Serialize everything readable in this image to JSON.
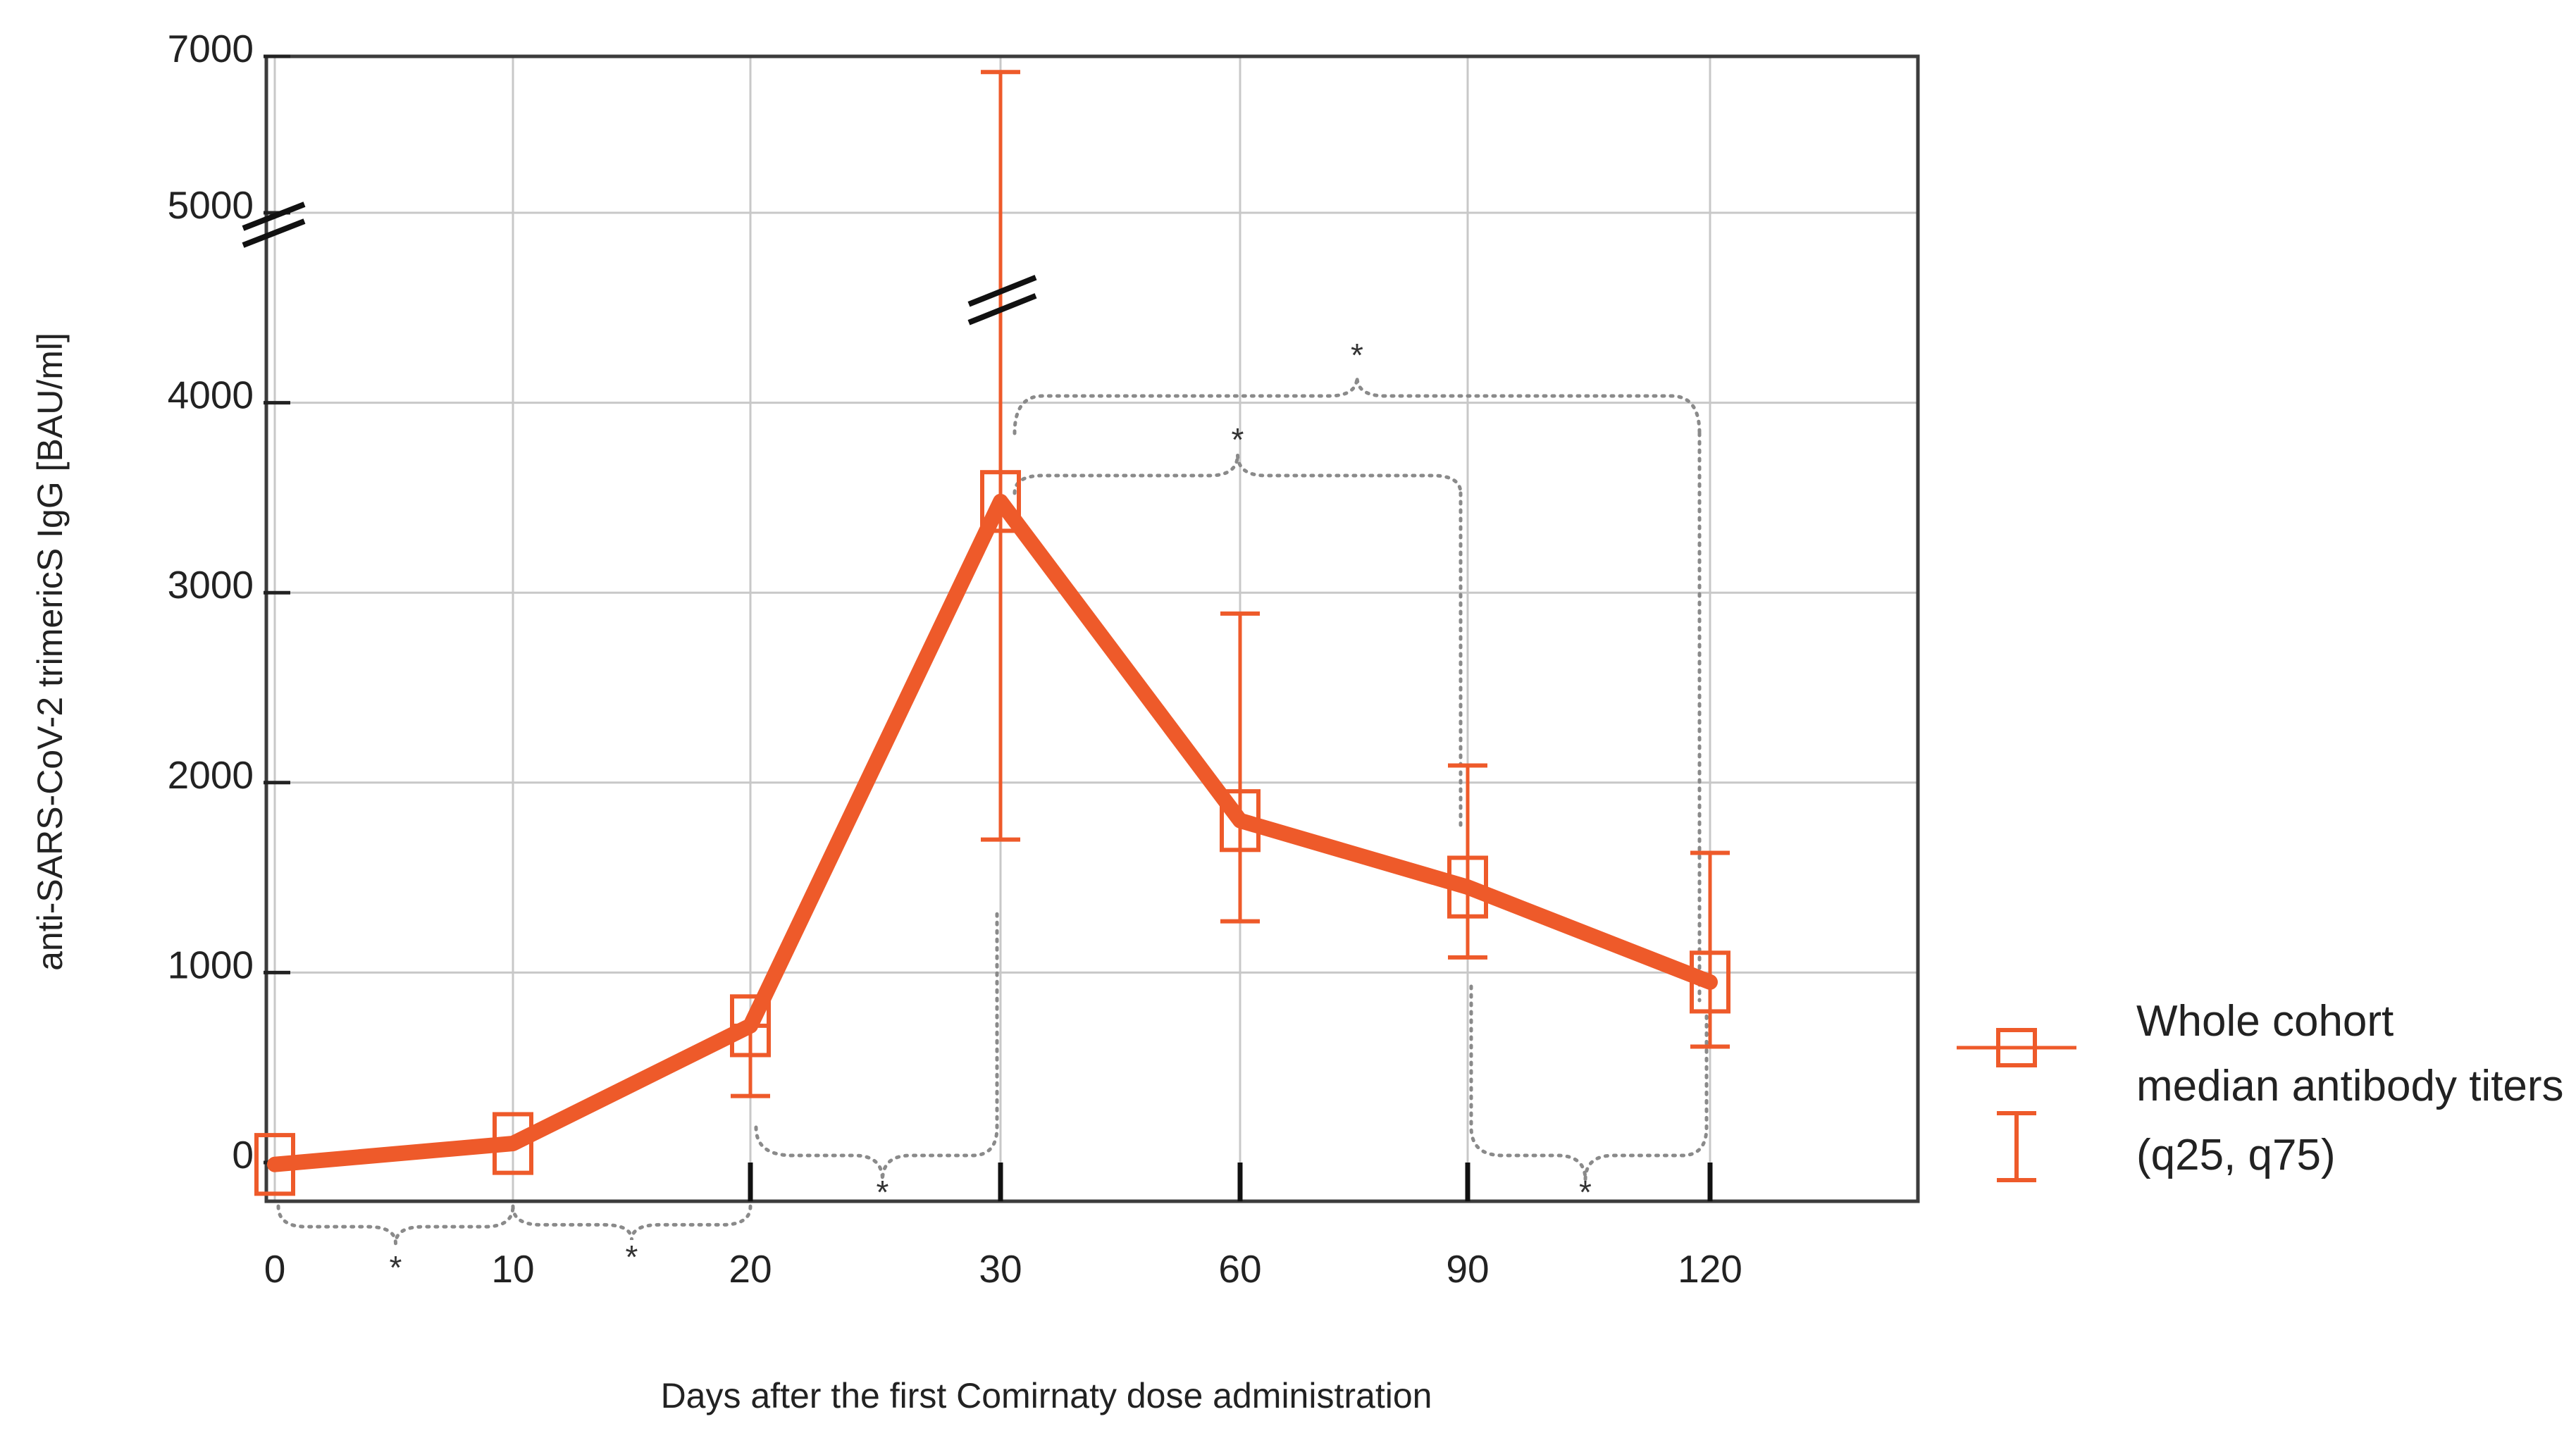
{
  "chart_data": {
    "type": "line",
    "title": "",
    "xlabel": "Days after the first Comirnaty dose administration",
    "ylabel": "anti-SARS-CoV-2 trimericS IgG [BAU/ml]",
    "x_ticks": [
      "0",
      "10",
      "20",
      "30",
      "60",
      "90",
      "120"
    ],
    "y_ticks": [
      "0",
      "1000",
      "2000",
      "3000",
      "4000",
      "5000",
      "7000"
    ],
    "ylim": [
      0,
      7000
    ],
    "y_axis_break": [
      5000,
      7000
    ],
    "grid": true,
    "series": [
      {
        "name": "Whole cohort median antibody titers",
        "x": [
          0,
          10,
          20,
          30,
          60,
          90,
          120
        ],
        "y": [
          -10,
          100,
          720,
          3480,
          1800,
          1450,
          950
        ],
        "q25": [
          -10,
          100,
          350,
          1700,
          1270,
          1080,
          610
        ],
        "q75": [
          -10,
          100,
          720,
          6800,
          2890,
          2090,
          1630
        ],
        "color": "#EE5A2A"
      }
    ],
    "significance_marks": [
      {
        "from": "0",
        "to": "10",
        "label": "*"
      },
      {
        "from": "10",
        "to": "20",
        "label": "*"
      },
      {
        "from": "20",
        "to": "30",
        "label": "*"
      },
      {
        "from": "90",
        "to": "120",
        "label": "*"
      },
      {
        "from": "30",
        "to": "90",
        "label": "*"
      },
      {
        "from": "30",
        "to": "120",
        "label": "*"
      }
    ],
    "legend": {
      "position": "right",
      "marker_label_lines": [
        "Whole",
        "cohort",
        "median antibody titers"
      ],
      "errorbar_label": "(q25, q75)"
    }
  }
}
